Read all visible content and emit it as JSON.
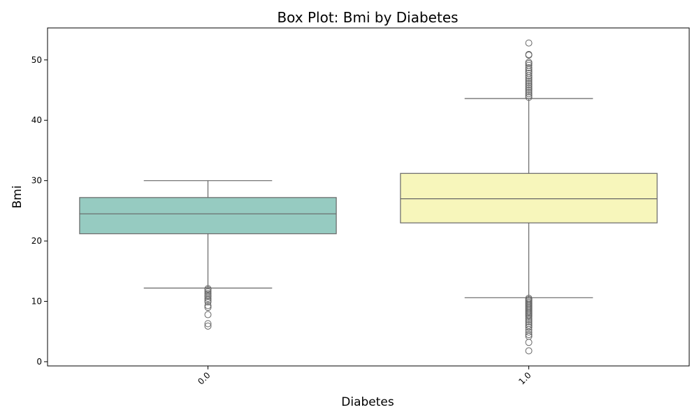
{
  "chart_data": {
    "type": "box",
    "title": "Box Plot: Bmi by Diabetes",
    "xlabel": "Diabetes",
    "ylabel": "Bmi",
    "ylim": [
      -0.7,
      55.3
    ],
    "yticks": [
      0,
      10,
      20,
      30,
      40,
      50
    ],
    "categories": [
      "0.0",
      "1.0"
    ],
    "colors": {
      "box_0": "#96cbc1",
      "box_1": "#f7f6bb",
      "line": "#666666",
      "axis": "#000000"
    },
    "series": [
      {
        "category": "0.0",
        "whisker_low": 12.2,
        "q1": 21.2,
        "median": 24.5,
        "q3": 27.2,
        "whisker_high": 30.0,
        "outliers": [
          12.1,
          11.9,
          11.6,
          11.3,
          11.0,
          10.8,
          10.5,
          10.2,
          9.9,
          9.3,
          9.0,
          7.8,
          6.3,
          5.9
        ]
      },
      {
        "category": "1.0",
        "whisker_low": 10.6,
        "q1": 23.0,
        "median": 27.0,
        "q3": 31.2,
        "whisker_high": 43.6,
        "outliers": [
          52.8,
          50.9,
          50.8,
          49.6,
          49.4,
          49.1,
          48.7,
          48.4,
          48.1,
          47.8,
          47.4,
          47.1,
          46.8,
          46.5,
          46.2,
          45.9,
          45.6,
          45.3,
          45.0,
          44.7,
          44.4,
          44.1,
          43.8,
          10.5,
          10.3,
          10.1,
          9.9,
          9.7,
          9.5,
          9.3,
          9.1,
          8.9,
          8.7,
          8.5,
          8.3,
          8.1,
          7.9,
          7.7,
          7.5,
          7.2,
          6.9,
          6.6,
          6.3,
          6.0,
          5.7,
          5.3,
          4.9,
          4.5,
          4.2,
          3.2,
          1.8
        ]
      }
    ]
  }
}
